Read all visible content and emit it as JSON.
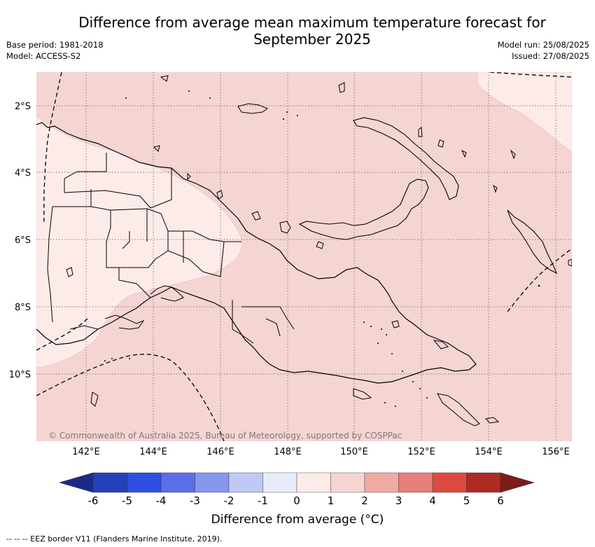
{
  "header": {
    "title_line1": "Difference from average mean maximum temperature forecast for",
    "title_line2": "September 2025",
    "base_period": "Base period: 1981-2018",
    "model": "Model: ACCESS-S2",
    "model_run": "Model run: 25/08/2025",
    "issued": "Issued: 27/08/2025"
  },
  "map": {
    "lat_labels": [
      "2°S",
      "4°S",
      "6°S",
      "8°S",
      "10°S"
    ],
    "lon_labels": [
      "142°E",
      "144°E",
      "146°E",
      "148°E",
      "150°E",
      "152°E",
      "154°E",
      "156°E"
    ],
    "copyright": "© Commonwealth of Australia 2025, Bureau of Meteorology, supported by COSPPac",
    "colors": {
      "anomaly_1_to_2": "#f5d5d2",
      "anomaly_0_to_1": "#fcebe9",
      "coastline": "#000000",
      "grid": "#555555"
    }
  },
  "colorbar": {
    "title": "Difference from average (°C)",
    "tick_labels": [
      "-6",
      "-5",
      "-4",
      "-3",
      "-2",
      "-1",
      "0",
      "1",
      "2",
      "3",
      "4",
      "5",
      "6"
    ],
    "colors": [
      "#1a2a8a",
      "#2440b8",
      "#2e4fe0",
      "#5a6ee6",
      "#8696ec",
      "#c0c8f4",
      "#e8ecfa",
      "#fcebe9",
      "#f5d5d2",
      "#efaaa4",
      "#e6807a",
      "#dc4a40",
      "#b02a24",
      "#7a1c18"
    ]
  },
  "footer": {
    "eez_note": "--  --  -- EEZ border V11 (Flanders Marine Institute, 2019)."
  }
}
